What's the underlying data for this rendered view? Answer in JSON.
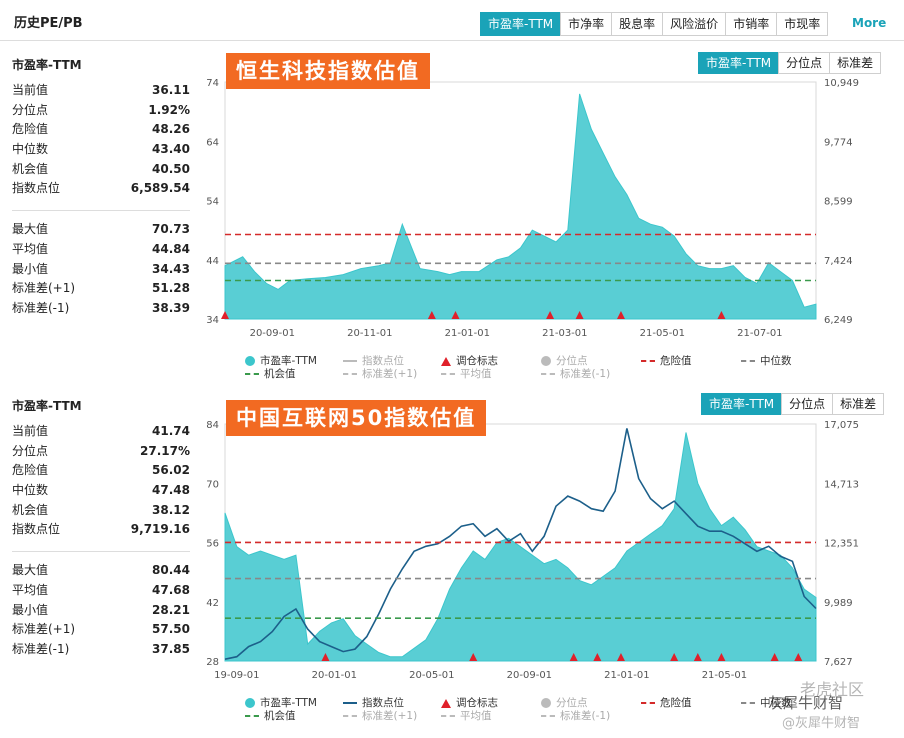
{
  "header": {
    "title": "历史PE/PB",
    "tabs": [
      "市盈率-TTM",
      "市净率",
      "股息率",
      "风险溢价",
      "市销率",
      "市现率"
    ],
    "active_tab": 0,
    "more": "More"
  },
  "colors": {
    "accent": "#1aa3b8",
    "area": "#3cc6cc",
    "line": "#1c5f8a",
    "danger": "#d42a2a",
    "median": "#888888",
    "chance": "#3a9a4c",
    "title_bg": "#f26a22",
    "marker": "#e0202a"
  },
  "panels": [
    {
      "stat_title": "市盈率-TTM",
      "stats1": [
        {
          "label": "当前值",
          "value": "36.11"
        },
        {
          "label": "分位点",
          "value": "1.92%"
        },
        {
          "label": "危险值",
          "value": "48.26"
        },
        {
          "label": "中位数",
          "value": "43.40"
        },
        {
          "label": "机会值",
          "value": "40.50"
        },
        {
          "label": "指数点位",
          "value": "6,589.54"
        }
      ],
      "stats2": [
        {
          "label": "最大值",
          "value": "70.73"
        },
        {
          "label": "平均值",
          "value": "44.84"
        },
        {
          "label": "最小值",
          "value": "34.43"
        },
        {
          "label": "标准差(+1)",
          "value": "51.28"
        },
        {
          "label": "标准差(-1)",
          "value": "38.39"
        }
      ],
      "subtabs": [
        "市盈率-TTM",
        "分位点",
        "标准差"
      ],
      "chart_title": "恒生科技指数估值",
      "legend": [
        {
          "label": "市盈率-TTM",
          "dim": false,
          "sym": "dot"
        },
        {
          "label": "指数点位",
          "dim": true,
          "sym": "line"
        },
        {
          "label": "调仓标志",
          "dim": false,
          "sym": "tri"
        },
        {
          "label": "分位点",
          "dim": true,
          "sym": "dot"
        },
        {
          "label": "危险值",
          "dim": false,
          "sym": "dash-red"
        },
        {
          "label": "中位数",
          "dim": false,
          "sym": "dash-gray"
        },
        {
          "label": "机会值",
          "dim": false,
          "sym": "dash-green"
        },
        {
          "label": "标准差(+1)",
          "dim": true,
          "sym": "dash-lgray"
        },
        {
          "label": "平均值",
          "dim": true,
          "sym": "dash-lgray"
        },
        {
          "label": "标准差(-1)",
          "dim": true,
          "sym": "dash-lgray"
        }
      ]
    },
    {
      "stat_title": "市盈率-TTM",
      "stats1": [
        {
          "label": "当前值",
          "value": "41.74"
        },
        {
          "label": "分位点",
          "value": "27.17%"
        },
        {
          "label": "危险值",
          "value": "56.02"
        },
        {
          "label": "中位数",
          "value": "47.48"
        },
        {
          "label": "机会值",
          "value": "38.12"
        },
        {
          "label": "指数点位",
          "value": "9,719.16"
        }
      ],
      "stats2": [
        {
          "label": "最大值",
          "value": "80.44"
        },
        {
          "label": "平均值",
          "value": "47.68"
        },
        {
          "label": "最小值",
          "value": "28.21"
        },
        {
          "label": "标准差(+1)",
          "value": "57.50"
        },
        {
          "label": "标准差(-1)",
          "value": "37.85"
        }
      ],
      "subtabs": [
        "市盈率-TTM",
        "分位点",
        "标准差"
      ],
      "chart_title": "中国互联网50指数估值",
      "legend": [
        {
          "label": "市盈率-TTM",
          "dim": false,
          "sym": "dot"
        },
        {
          "label": "指数点位",
          "dim": false,
          "sym": "line"
        },
        {
          "label": "调仓标志",
          "dim": false,
          "sym": "tri"
        },
        {
          "label": "分位点",
          "dim": true,
          "sym": "dot"
        },
        {
          "label": "危险值",
          "dim": false,
          "sym": "dash-red"
        },
        {
          "label": "中位数",
          "dim": false,
          "sym": "dash-gray"
        },
        {
          "label": "机会值",
          "dim": false,
          "sym": "dash-green"
        },
        {
          "label": "标准差(+1)",
          "dim": true,
          "sym": "dash-lgray"
        },
        {
          "label": "平均值",
          "dim": true,
          "sym": "dash-lgray"
        },
        {
          "label": "标准差(-1)",
          "dim": true,
          "sym": "dash-lgray"
        }
      ]
    }
  ],
  "chart_data": [
    {
      "type": "area",
      "title": "恒生科技指数估值",
      "x_ticks": [
        "20-09-01",
        "20-11-01",
        "21-01-01",
        "21-03-01",
        "21-05-01",
        "21-07-01"
      ],
      "y_left_ticks": [
        "34",
        "44",
        "54",
        "64",
        "74"
      ],
      "y_right_ticks": [
        "6,249",
        "7,424",
        "8,599",
        "9,774",
        "10,949"
      ],
      "ylim": [
        34,
        74
      ],
      "y2lim": [
        6249,
        10949
      ],
      "x": [
        0,
        3,
        5,
        7,
        9,
        11,
        14,
        17,
        20,
        23,
        26,
        28,
        30,
        33,
        36,
        38,
        40,
        43,
        46,
        48,
        50,
        52,
        54,
        56,
        58,
        60,
        62,
        64,
        66,
        68,
        70,
        72,
        74,
        76,
        78,
        80,
        82,
        84,
        86,
        88,
        90,
        92,
        94,
        96,
        98,
        100
      ],
      "values": [
        43,
        44.5,
        42,
        40,
        39,
        40.5,
        40.8,
        41,
        41.5,
        42.5,
        43,
        43.5,
        50,
        42.5,
        42,
        41.5,
        42,
        42,
        44,
        44.5,
        46,
        49,
        48,
        47,
        49,
        72,
        66,
        62,
        58,
        55,
        51,
        50,
        49.5,
        48,
        45,
        43,
        42.5,
        42.5,
        43,
        41,
        40,
        43.5,
        42,
        40.5,
        36,
        36.5
      ],
      "index_points": [],
      "markers": [
        0,
        35,
        39,
        55,
        60,
        67,
        84
      ],
      "lines": {
        "danger": 48.26,
        "median": 43.4,
        "chance": 40.5
      }
    },
    {
      "type": "area",
      "title": "中国互联网50指数估值",
      "x_ticks": [
        "19-09-01",
        "20-01-01",
        "20-05-01",
        "20-09-01",
        "21-01-01",
        "21-05-01"
      ],
      "y_left_ticks": [
        "28",
        "42",
        "56",
        "70",
        "84"
      ],
      "y_right_ticks": [
        "7,627",
        "9,989",
        "12,351",
        "14,713",
        "17,075"
      ],
      "ylim": [
        28,
        84
      ],
      "y2lim": [
        7627,
        17075
      ],
      "x": [
        0,
        2,
        4,
        6,
        8,
        10,
        12,
        14,
        16,
        18,
        20,
        22,
        24,
        26,
        28,
        30,
        32,
        34,
        36,
        38,
        40,
        42,
        44,
        46,
        48,
        50,
        52,
        54,
        56,
        58,
        60,
        62,
        64,
        66,
        68,
        70,
        72,
        74,
        76,
        78,
        80,
        82,
        84,
        86,
        88,
        90,
        92,
        94,
        96,
        98,
        100
      ],
      "values": [
        63,
        55,
        53,
        54,
        53,
        52,
        53,
        32,
        35,
        37,
        38,
        34,
        32,
        30,
        29,
        29,
        31,
        33,
        38,
        45,
        50,
        54,
        52,
        56,
        57,
        55,
        53,
        51,
        52,
        50,
        47,
        46,
        48,
        50,
        54,
        56,
        58,
        60,
        64,
        82,
        70,
        64,
        60,
        62,
        59,
        55,
        54,
        53,
        50,
        45,
        43
      ],
      "index_points": [
        7700,
        7800,
        8200,
        8400,
        8800,
        9400,
        9700,
        8900,
        8400,
        8200,
        8000,
        8100,
        8600,
        9500,
        10500,
        11300,
        12000,
        12200,
        12300,
        12600,
        13000,
        13100,
        12600,
        12900,
        12400,
        12700,
        12000,
        12600,
        13800,
        14200,
        14000,
        13700,
        13600,
        14400,
        16900,
        14900,
        14100,
        13700,
        14000,
        13500,
        13000,
        12800,
        12800,
        12600,
        12300,
        12000,
        12200,
        11800,
        11600,
        10200,
        9719
      ],
      "markers": [
        17,
        42,
        59,
        63,
        67,
        76,
        80,
        84,
        93,
        97
      ],
      "lines": {
        "danger": 56.02,
        "median": 47.48,
        "chance": 38.12
      }
    }
  ],
  "watermark": [
    "@灰犀牛财智",
    "老虎社区",
    "灰犀牛财智"
  ]
}
